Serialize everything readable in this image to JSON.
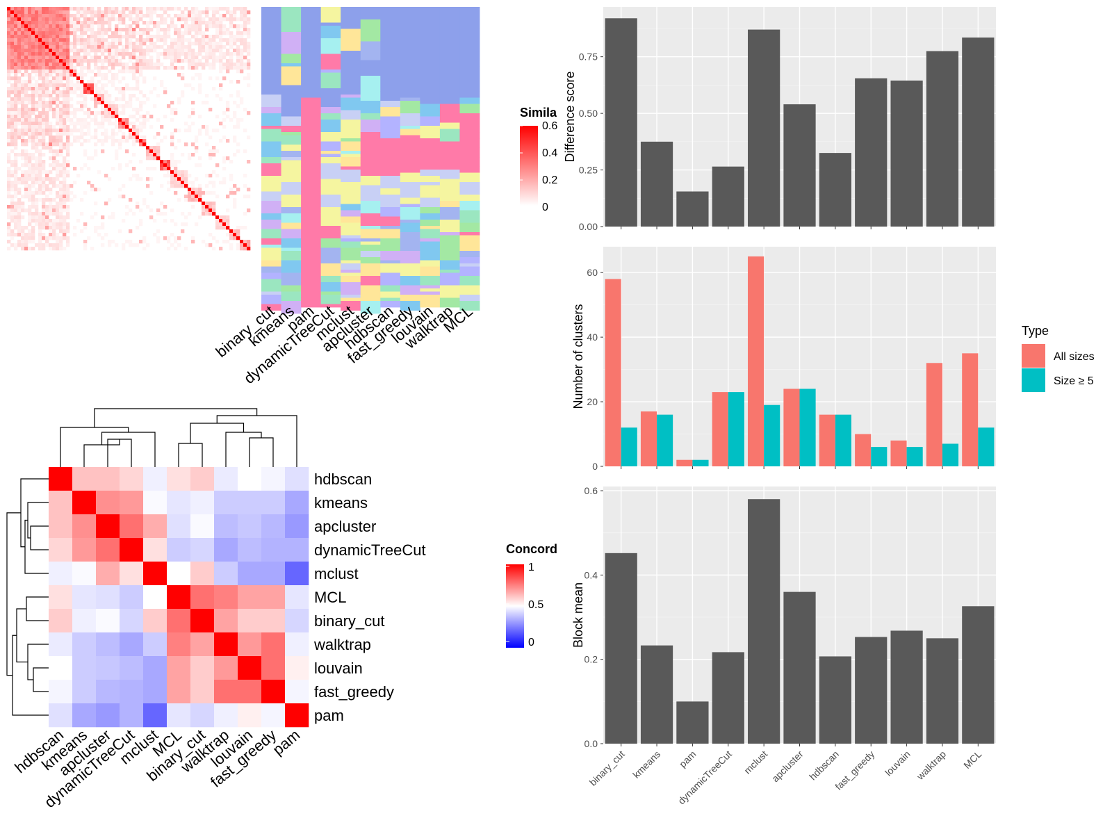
{
  "chart_data": [
    {
      "type": "heatmap",
      "id": "similarity",
      "legend": {
        "title": "Simila",
        "ticks": [
          "0.6",
          "0.4",
          "0.2",
          "0"
        ],
        "ramp": [
          "#ffffff",
          "#ff0000"
        ]
      }
    },
    {
      "type": "heatmap",
      "id": "cluster-assignments",
      "columns": [
        "binary_cut",
        "kmeans",
        "pam",
        "dynamicTreeCut",
        "mclust",
        "apcluster",
        "hdbscan",
        "fast_greedy",
        "louvain",
        "walktrap",
        "MCL"
      ],
      "palette": [
        "#8da0eb",
        "#a3b4f0",
        "#ff7aa8",
        "#ffe699",
        "#b3b3ff",
        "#a6f0f0",
        "#a3e8a3",
        "#80c8f0",
        "#d0b0f5",
        "#f5f5a0",
        "#c8d0f5",
        "#9be6c0"
      ]
    },
    {
      "type": "heatmap",
      "id": "concordance",
      "legend": {
        "title": "Concord",
        "ticks": [
          "1",
          "0.5",
          "0"
        ],
        "ramp": [
          "#0000ff",
          "#ffffff",
          "#ff0000"
        ]
      },
      "rows": [
        "hdbscan",
        "kmeans",
        "apcluster",
        "dynamicTreeCut",
        "mclust",
        "MCL",
        "binary_cut",
        "walktrap",
        "louvain",
        "fast_greedy",
        "pam"
      ],
      "columns": [
        "hdbscan",
        "kmeans",
        "apcluster",
        "dynamicTreeCut",
        "mclust",
        "MCL",
        "binary_cut",
        "walktrap",
        "louvain",
        "fast_greedy",
        "pam"
      ],
      "values": [
        [
          1.0,
          0.62,
          0.62,
          0.58,
          0.47,
          0.56,
          0.6,
          0.46,
          0.5,
          0.48,
          0.44
        ],
        [
          0.62,
          1.0,
          0.72,
          0.7,
          0.49,
          0.45,
          0.47,
          0.4,
          0.4,
          0.4,
          0.33
        ],
        [
          0.62,
          0.72,
          1.0,
          0.78,
          0.66,
          0.44,
          0.49,
          0.37,
          0.39,
          0.36,
          0.3
        ],
        [
          0.58,
          0.7,
          0.78,
          1.0,
          0.56,
          0.4,
          0.42,
          0.33,
          0.37,
          0.35,
          0.35
        ],
        [
          0.47,
          0.49,
          0.66,
          0.56,
          1.0,
          0.5,
          0.6,
          0.4,
          0.33,
          0.33,
          0.2
        ],
        [
          0.56,
          0.45,
          0.44,
          0.4,
          0.5,
          1.0,
          0.78,
          0.75,
          0.68,
          0.68,
          0.45
        ],
        [
          0.6,
          0.47,
          0.49,
          0.42,
          0.6,
          0.78,
          1.0,
          0.68,
          0.6,
          0.6,
          0.42
        ],
        [
          0.46,
          0.4,
          0.37,
          0.33,
          0.4,
          0.75,
          0.68,
          1.0,
          0.7,
          0.78,
          0.47
        ],
        [
          0.5,
          0.4,
          0.39,
          0.37,
          0.33,
          0.68,
          0.6,
          0.7,
          1.0,
          0.78,
          0.53
        ],
        [
          0.48,
          0.4,
          0.36,
          0.35,
          0.33,
          0.68,
          0.6,
          0.78,
          0.78,
          1.0,
          0.48
        ],
        [
          0.44,
          0.33,
          0.3,
          0.35,
          0.2,
          0.45,
          0.42,
          0.47,
          0.53,
          0.48,
          1.0
        ]
      ]
    },
    {
      "type": "bar",
      "id": "difference-score",
      "categories": [
        "binary_cut",
        "kmeans",
        "pam",
        "dynamicTreeCut",
        "mclust",
        "apcluster",
        "hdbscan",
        "fast_greedy",
        "louvain",
        "walktrap",
        "MCL"
      ],
      "values": [
        0.92,
        0.375,
        0.155,
        0.265,
        0.87,
        0.54,
        0.325,
        0.655,
        0.645,
        0.775,
        0.835
      ],
      "ylabel": "Difference score",
      "ylim": [
        0,
        0.97
      ],
      "yticks": [
        "0.00",
        "0.25",
        "0.50",
        "0.75"
      ],
      "grid": true
    },
    {
      "type": "bar",
      "id": "number-of-clusters",
      "categories": [
        "binary_cut",
        "kmeans",
        "pam",
        "dynamicTreeCut",
        "mclust",
        "apcluster",
        "hdbscan",
        "fast_greedy",
        "louvain",
        "walktrap",
        "MCL"
      ],
      "series": [
        {
          "name": "All sizes",
          "color": "#f8766d",
          "values": [
            58,
            17,
            2,
            23,
            65,
            24,
            16,
            10,
            8,
            32,
            35
          ]
        },
        {
          "name": "Size ≥ 5",
          "color": "#00bfc4",
          "values": [
            12,
            16,
            2,
            23,
            19,
            24,
            16,
            6,
            6,
            7,
            12
          ]
        }
      ],
      "ylabel": "Number of clusters",
      "ylim": [
        0,
        68
      ],
      "yticks": [
        "0",
        "20",
        "40",
        "60"
      ],
      "legend": {
        "title": "Type",
        "position": "right"
      },
      "grid": true
    },
    {
      "type": "bar",
      "id": "block-mean",
      "categories": [
        "binary_cut",
        "kmeans",
        "pam",
        "dynamicTreeCut",
        "mclust",
        "apcluster",
        "hdbscan",
        "fast_greedy",
        "louvain",
        "walktrap",
        "MCL"
      ],
      "values": [
        0.452,
        0.233,
        0.1,
        0.217,
        0.58,
        0.36,
        0.207,
        0.253,
        0.268,
        0.25,
        0.326
      ],
      "ylabel": "Block mean",
      "ylim": [
        0,
        0.61
      ],
      "yticks": [
        "0.0",
        "0.2",
        "0.4",
        "0.6"
      ],
      "grid": true
    }
  ]
}
